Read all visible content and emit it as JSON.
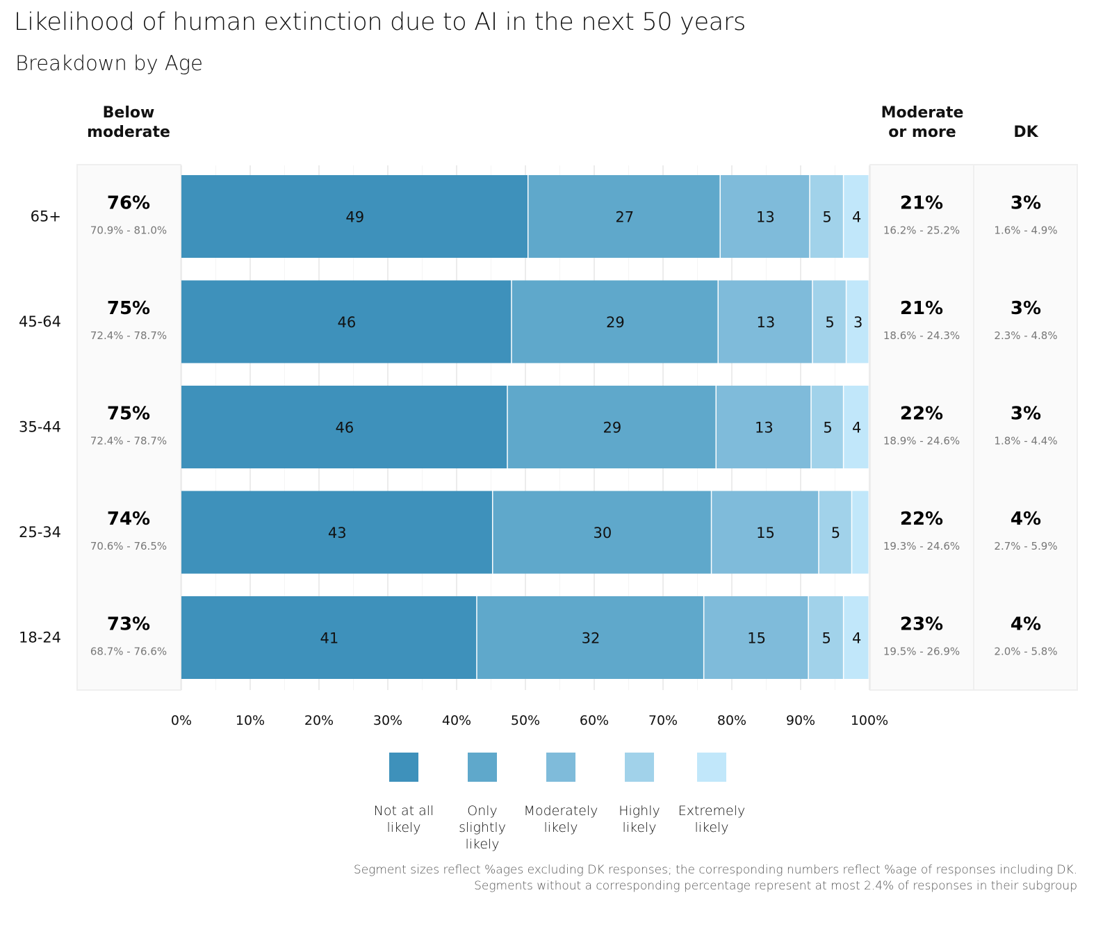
{
  "header": {
    "title": "Likelihood of human extinction due to AI in the next 50 years",
    "subtitle": "Breakdown by Age"
  },
  "columns": {
    "below": "Below\nmoderate",
    "below_line1": "Below",
    "below_line2": "moderate",
    "moderate_line1": "Moderate",
    "moderate_line2": "or more",
    "dk": "DK"
  },
  "footnote": {
    "line1": "Segment sizes reflect %ages excluding DK responses; the corresponding numbers reflect %age of responses including DK.",
    "line2": "Segments without a corresponding percentage represent at most 2.4% of responses in their subgroup"
  },
  "chart_data": {
    "type": "bar",
    "orientation": "horizontal-stacked-100",
    "title": "Likelihood of human extinction due to AI in the next 50 years",
    "subtitle": "Breakdown by Age",
    "xlabel": "",
    "ylabel": "",
    "xlim": [
      0,
      100
    ],
    "x_ticks": [
      "0%",
      "10%",
      "20%",
      "30%",
      "40%",
      "50%",
      "60%",
      "70%",
      "80%",
      "90%",
      "100%"
    ],
    "grid": true,
    "legend_position": "bottom",
    "categories": [
      "65+",
      "45-64",
      "35-44",
      "25-34",
      "18-24"
    ],
    "series": [
      {
        "name": "Not at all likely",
        "color": "#3e91bb",
        "share_excl_dk": [
          50.4,
          48.0,
          47.4,
          45.3,
          43.0
        ],
        "labels": [
          "49",
          "46",
          "46",
          "43",
          "41"
        ]
      },
      {
        "name": "Only slightly likely",
        "color": "#5fa8cb",
        "share_excl_dk": [
          27.9,
          30.0,
          30.3,
          31.8,
          33.0
        ],
        "labels": [
          "27",
          "29",
          "29",
          "30",
          "32"
        ]
      },
      {
        "name": "Moderately likely",
        "color": "#7fbbda",
        "share_excl_dk": [
          13.0,
          13.7,
          13.8,
          15.6,
          15.2
        ],
        "labels": [
          "13",
          "13",
          "13",
          "15",
          "15"
        ]
      },
      {
        "name": "Highly likely",
        "color": "#a1d2ea",
        "share_excl_dk": [
          4.9,
          4.9,
          4.7,
          4.8,
          5.1
        ],
        "labels": [
          "5",
          "5",
          "5",
          "5",
          "5"
        ]
      },
      {
        "name": "Extremely likely",
        "color": "#c1e7fa",
        "share_excl_dk": [
          3.7,
          3.3,
          3.7,
          2.5,
          3.7
        ],
        "labels": [
          "4",
          "3",
          "4",
          "",
          "4"
        ]
      }
    ],
    "legend_labels": [
      [
        "Not at all",
        "likely"
      ],
      [
        "Only",
        "slightly",
        "likely"
      ],
      [
        "Moderately",
        "likely"
      ],
      [
        "Highly",
        "likely"
      ],
      [
        "Extremely",
        "likely"
      ]
    ],
    "summary": {
      "below_moderate": {
        "values": [
          "76%",
          "75%",
          "75%",
          "74%",
          "73%"
        ],
        "ci": [
          "70.9% - 81.0%",
          "72.4% - 78.7%",
          "72.4% - 78.7%",
          "70.6% - 76.5%",
          "68.7% - 76.6%"
        ]
      },
      "moderate_or_more": {
        "values": [
          "21%",
          "21%",
          "22%",
          "22%",
          "23%"
        ],
        "ci": [
          "16.2% - 25.2%",
          "18.6% - 24.3%",
          "18.9% - 24.6%",
          "19.3% - 24.6%",
          "19.5% - 26.9%"
        ]
      },
      "dk": {
        "values": [
          "3%",
          "3%",
          "3%",
          "4%",
          "4%"
        ],
        "ci": [
          "1.6% - 4.9%",
          "2.3% - 4.8%",
          "1.8% - 4.4%",
          "2.7% - 5.9%",
          "2.0% - 5.8%"
        ]
      }
    }
  }
}
